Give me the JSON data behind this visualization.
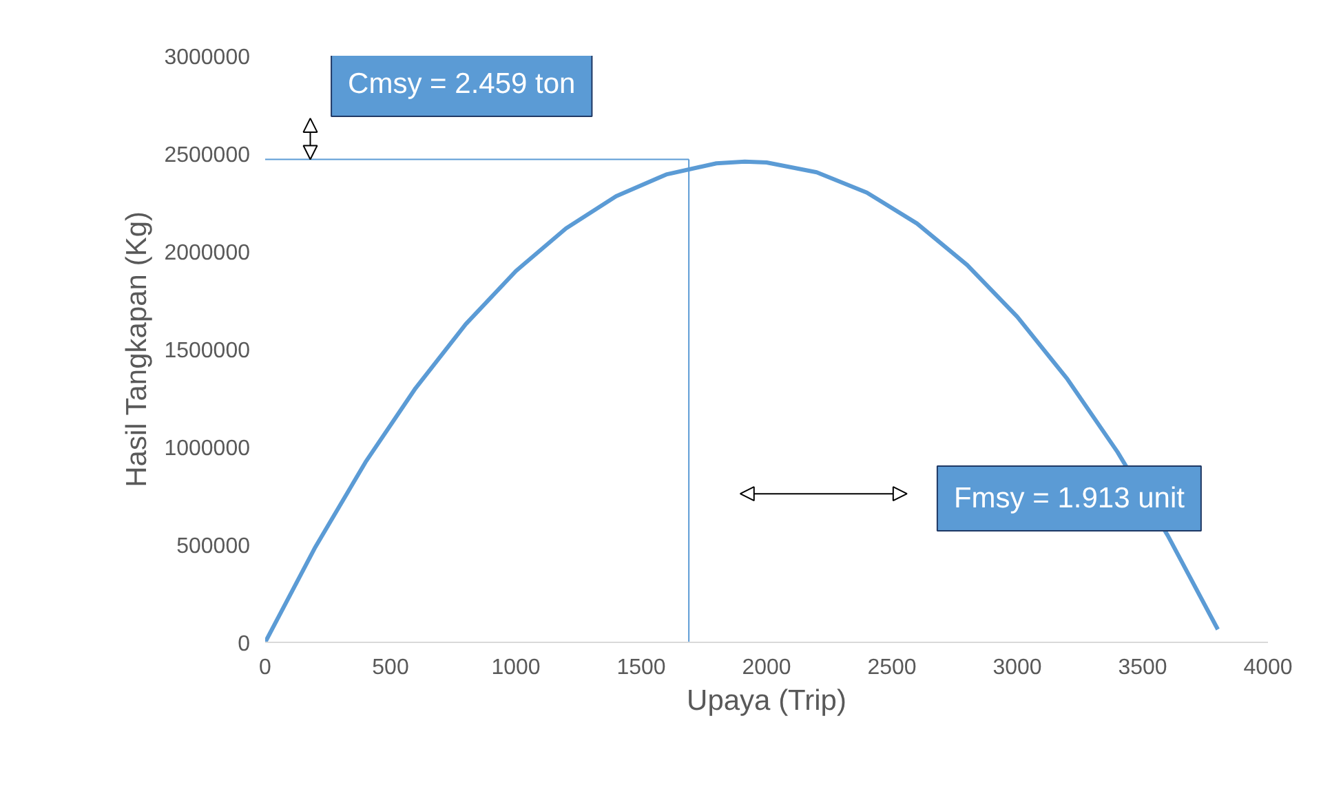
{
  "chart_data": {
    "type": "line",
    "xlabel": "Upaya (Trip)",
    "ylabel": "Hasil Tangkapan (Kg)",
    "x": [
      0,
      200,
      400,
      600,
      800,
      1000,
      1200,
      1400,
      1600,
      1800,
      1913,
      2000,
      2200,
      2400,
      2600,
      2800,
      3000,
      3200,
      3400,
      3600,
      3800
    ],
    "series": [
      {
        "color": "#5b9bd5",
        "values": [
          0,
          487000,
          921000,
          1300000,
          1627000,
          1899000,
          2117000,
          2282000,
          2393000,
          2450000,
          2459000,
          2454000,
          2404000,
          2300000,
          2142000,
          1930000,
          1665000,
          1346000,
          973000,
          547000,
          66000
        ]
      }
    ],
    "xlim": [
      0,
      4000
    ],
    "xticks": [
      0,
      500,
      1000,
      1500,
      2000,
      2500,
      3000,
      3500,
      4000
    ],
    "ylim": [
      0,
      3000000
    ],
    "yticks": [
      0,
      500000,
      1000000,
      1500000,
      2000000,
      2500000,
      3000000
    ],
    "ref_lines": [
      {
        "axis": "x",
        "value": 1690,
        "color": "#5b9bd5"
      },
      {
        "axis": "y",
        "value": 2470000,
        "color": "#5b9bd5"
      }
    ],
    "annotations": [
      "Cmsy = 2.459 ton",
      "Fmsy = 1.913 unit"
    ],
    "grid": false,
    "marker": "none",
    "line_style": "solid"
  }
}
